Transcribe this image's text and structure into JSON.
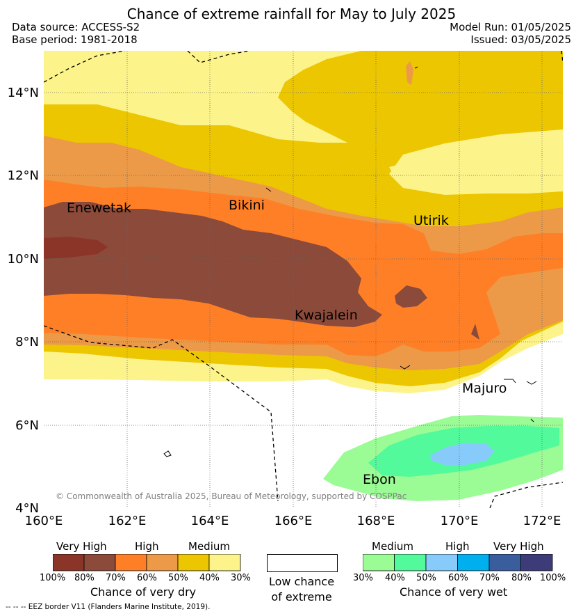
{
  "header": {
    "title": "Chance of extreme rainfall for May to July 2025",
    "data_source": "Data source: ACCESS-S2",
    "base_period": "Base period: 1981-2018",
    "model_run": "Model Run: 01/05/2025",
    "issued": "Issued: 03/05/2025"
  },
  "map": {
    "lat_labels": [
      "14°N",
      "12°N",
      "10°N",
      "8°N",
      "6°N",
      "4°N"
    ],
    "lon_labels": [
      "160°E",
      "162°E",
      "164°E",
      "166°E",
      "168°E",
      "170°E",
      "172°E"
    ],
    "places": [
      {
        "name": "Enewetak"
      },
      {
        "name": "Bikini"
      },
      {
        "name": "Utirik"
      },
      {
        "name": "Kwajalein"
      },
      {
        "name": "Majuro"
      },
      {
        "name": "Ebon"
      }
    ],
    "credit": "© Commonwealth of Australia 2025, Bureau of Meteorology, supported by COSPPac"
  },
  "legend": {
    "dry": {
      "categories": [
        "Very High",
        "High",
        "Medium"
      ],
      "ticks": [
        "100%",
        "80%",
        "70%",
        "60%",
        "50%",
        "40%",
        "30%"
      ],
      "colors": [
        "#8b3528",
        "#8b4a3a",
        "#ff7f27",
        "#ec9a48",
        "#ecc600",
        "#fcf38a"
      ],
      "caption": "Chance of very dry"
    },
    "none": {
      "color": "#ffffff",
      "caption_line1": "Low chance",
      "caption_line2": "of extreme"
    },
    "wet": {
      "categories": [
        "Medium",
        "High",
        "Very High"
      ],
      "ticks": [
        "30%",
        "40%",
        "50%",
        "60%",
        "70%",
        "80%",
        "100%"
      ],
      "colors": [
        "#9bfb95",
        "#52fa9c",
        "#87cbfb",
        "#00b0ee",
        "#3a5d9e",
        "#3d3c78"
      ],
      "caption": "Chance of very wet"
    },
    "eez_note": "-- -- -- EEZ border V11 (Flanders Marine Institute, 2019)."
  }
}
